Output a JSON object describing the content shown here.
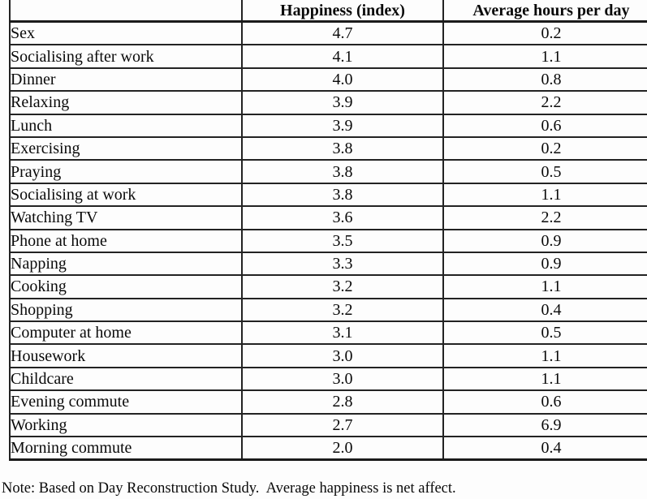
{
  "table": {
    "header": {
      "activity": "",
      "happiness": "Happiness (index)",
      "hours": "Average hours per day"
    },
    "rows": [
      {
        "activity": "Sex",
        "happiness": "4.7",
        "hours": "0.2"
      },
      {
        "activity": "Socialising after work",
        "happiness": "4.1",
        "hours": "1.1"
      },
      {
        "activity": "Dinner",
        "happiness": "4.0",
        "hours": "0.8"
      },
      {
        "activity": "Relaxing",
        "happiness": "3.9",
        "hours": "2.2"
      },
      {
        "activity": "Lunch",
        "happiness": "3.9",
        "hours": "0.6"
      },
      {
        "activity": "Exercising",
        "happiness": "3.8",
        "hours": "0.2"
      },
      {
        "activity": "Praying",
        "happiness": "3.8",
        "hours": "0.5"
      },
      {
        "activity": "Socialising at work",
        "happiness": "3.8",
        "hours": "1.1"
      },
      {
        "activity": "Watching TV",
        "happiness": "3.6",
        "hours": "2.2"
      },
      {
        "activity": "Phone at home",
        "happiness": "3.5",
        "hours": "0.9"
      },
      {
        "activity": "Napping",
        "happiness": "3.3",
        "hours": "0.9"
      },
      {
        "activity": "Cooking",
        "happiness": "3.2",
        "hours": "1.1"
      },
      {
        "activity": "Shopping",
        "happiness": "3.2",
        "hours": "0.4"
      },
      {
        "activity": "Computer at home",
        "happiness": "3.1",
        "hours": "0.5"
      },
      {
        "activity": "Housework",
        "happiness": "3.0",
        "hours": "1.1"
      },
      {
        "activity": "Childcare",
        "happiness": "3.0",
        "hours": "1.1"
      },
      {
        "activity": "Evening commute",
        "happiness": "2.8",
        "hours": "0.6"
      },
      {
        "activity": "Working",
        "happiness": "2.7",
        "hours": "6.9"
      },
      {
        "activity": "Morning commute",
        "happiness": "2.0",
        "hours": "0.4"
      }
    ]
  },
  "note": "Note: Based on Day Reconstruction Study.  Average happiness is net affect.",
  "colors": {
    "background": "#fdfdfd",
    "border": "#232323",
    "text": "#0a0a0a"
  }
}
